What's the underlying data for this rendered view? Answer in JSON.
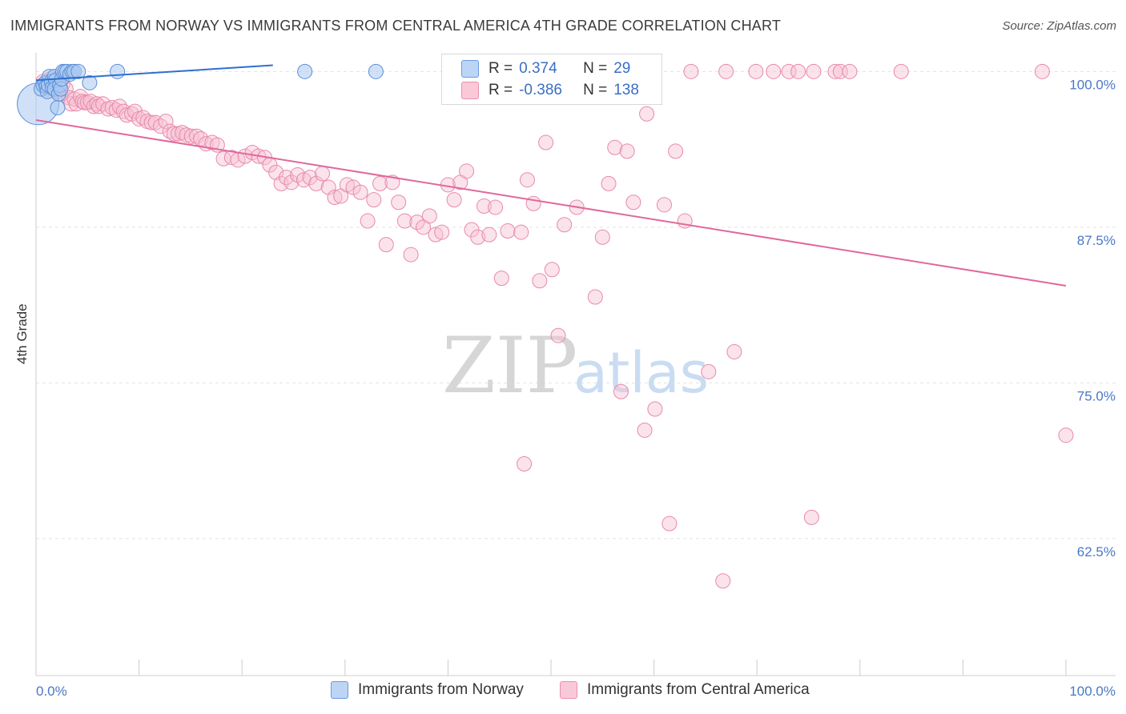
{
  "title": "IMMIGRANTS FROM NORWAY VS IMMIGRANTS FROM CENTRAL AMERICA 4TH GRADE CORRELATION CHART",
  "source": "Source: ZipAtlas.com",
  "legend": {
    "r_label": "R =",
    "n_label": "N =",
    "rows": [
      {
        "r": "0.374",
        "n": "29"
      },
      {
        "r": "-0.386",
        "n": "138"
      }
    ]
  },
  "watermark": {
    "zip": "ZIP",
    "atlas": "atlas"
  },
  "chart_data": {
    "type": "scatter",
    "ylabel": "4th Grade",
    "xlim": [
      0,
      100
    ],
    "ylim": [
      51.5,
      101.5
    ],
    "yticks": [
      {
        "value": 100,
        "label": "100.0%"
      },
      {
        "value": 87.5,
        "label": "87.5%"
      },
      {
        "value": 75,
        "label": "75.0%"
      },
      {
        "value": 62.5,
        "label": "62.5%"
      }
    ],
    "xtick_labels": {
      "min": "0.0%",
      "max": "100.0%"
    },
    "colors": {
      "norway_fill": "#a9c8f0",
      "norway_stroke": "#5b8fd9",
      "norway_line": "#2f6fcf",
      "central_fill": "#f7c0d2",
      "central_stroke": "#e889aa",
      "central_line": "#e0689a",
      "tick": "#4a78c6",
      "grid": "#e2e2e2",
      "axis": "#cccccc"
    },
    "series": [
      {
        "name": "Immigrants from Norway",
        "trend": {
          "x": [
            0,
            23
          ],
          "y": [
            99.3,
            100.5
          ]
        },
        "points": [
          [
            0.2,
            97.4,
            26
          ],
          [
            0.5,
            98.6,
            9
          ],
          [
            0.7,
            98.9,
            9
          ],
          [
            0.9,
            99.1,
            9
          ],
          [
            1.0,
            98.8,
            9
          ],
          [
            1.1,
            98.4,
            9
          ],
          [
            1.2,
            98.9,
            9
          ],
          [
            1.3,
            99.6,
            9
          ],
          [
            1.5,
            99.2,
            9
          ],
          [
            1.6,
            98.7,
            9
          ],
          [
            1.8,
            99.6,
            9
          ],
          [
            1.9,
            99.3,
            9
          ],
          [
            1.8,
            98.6,
            9
          ],
          [
            2.1,
            97.1,
            9
          ],
          [
            2.2,
            98.2,
            9
          ],
          [
            2.3,
            98.9,
            9
          ],
          [
            2.4,
            98.6,
            9
          ],
          [
            2.5,
            99.4,
            9
          ],
          [
            2.6,
            100.0,
            9
          ],
          [
            2.8,
            100.0,
            9
          ],
          [
            3.0,
            100.0,
            9
          ],
          [
            3.3,
            99.8,
            9
          ],
          [
            3.5,
            100.0,
            9
          ],
          [
            3.7,
            100.0,
            9
          ],
          [
            4.1,
            100.0,
            9
          ],
          [
            5.2,
            99.1,
            9
          ],
          [
            7.9,
            100.0,
            9
          ],
          [
            26.1,
            100.0,
            9
          ],
          [
            33.0,
            100.0,
            9
          ]
        ]
      },
      {
        "name": "Immigrants from Central America",
        "trend": {
          "x": [
            0,
            100
          ],
          "y": [
            96.1,
            82.8
          ]
        },
        "points": [
          [
            0.7,
            99.2,
            9
          ],
          [
            1.1,
            98.6,
            9
          ],
          [
            1.4,
            99.4,
            9
          ],
          [
            1.7,
            98.6,
            9
          ],
          [
            2.0,
            98.4,
            9
          ],
          [
            2.2,
            99.1,
            9
          ],
          [
            2.4,
            98.2,
            9
          ],
          [
            2.6,
            99.0,
            9
          ],
          [
            2.9,
            98.6,
            9
          ],
          [
            3.2,
            97.9,
            9
          ],
          [
            3.4,
            97.4,
            9
          ],
          [
            3.7,
            97.8,
            9
          ],
          [
            3.9,
            97.4,
            9
          ],
          [
            4.3,
            98.0,
            9
          ],
          [
            4.5,
            97.6,
            9
          ],
          [
            4.7,
            97.5,
            9
          ],
          [
            5.0,
            97.5,
            9
          ],
          [
            5.3,
            97.6,
            9
          ],
          [
            5.6,
            97.2,
            9
          ],
          [
            5.9,
            97.4,
            9
          ],
          [
            6.1,
            97.2,
            9
          ],
          [
            6.5,
            97.4,
            9
          ],
          [
            7.0,
            97.0,
            9
          ],
          [
            7.4,
            97.1,
            9
          ],
          [
            7.8,
            96.9,
            9
          ],
          [
            8.1,
            97.2,
            9
          ],
          [
            8.5,
            96.8,
            9
          ],
          [
            8.8,
            96.5,
            9
          ],
          [
            9.3,
            96.6,
            9
          ],
          [
            9.6,
            96.8,
            9
          ],
          [
            10.0,
            96.2,
            9
          ],
          [
            10.4,
            96.3,
            9
          ],
          [
            10.8,
            96.0,
            9
          ],
          [
            11.2,
            95.9,
            9
          ],
          [
            11.6,
            95.9,
            9
          ],
          [
            12.1,
            95.6,
            9
          ],
          [
            12.6,
            96.0,
            9
          ],
          [
            13.0,
            95.2,
            9
          ],
          [
            13.4,
            95.0,
            9
          ],
          [
            13.8,
            95.0,
            9
          ],
          [
            14.2,
            95.1,
            9
          ],
          [
            14.6,
            94.9,
            9
          ],
          [
            15.1,
            94.8,
            9
          ],
          [
            15.6,
            94.8,
            9
          ],
          [
            16.0,
            94.6,
            9
          ],
          [
            16.5,
            94.2,
            9
          ],
          [
            17.1,
            94.3,
            9
          ],
          [
            17.6,
            94.1,
            9
          ],
          [
            18.2,
            93.0,
            9
          ],
          [
            19.0,
            93.1,
            9
          ],
          [
            19.6,
            92.9,
            9
          ],
          [
            20.3,
            93.2,
            9
          ],
          [
            21.0,
            93.5,
            9
          ],
          [
            21.6,
            93.2,
            9
          ],
          [
            22.2,
            93.1,
            9
          ],
          [
            22.7,
            92.5,
            9
          ],
          [
            23.3,
            91.9,
            9
          ],
          [
            23.8,
            91.0,
            9
          ],
          [
            24.3,
            91.5,
            9
          ],
          [
            24.8,
            91.1,
            9
          ],
          [
            25.4,
            91.7,
            9
          ],
          [
            26.0,
            91.3,
            9
          ],
          [
            26.6,
            91.5,
            9
          ],
          [
            27.2,
            91.0,
            9
          ],
          [
            27.8,
            91.8,
            9
          ],
          [
            28.4,
            90.7,
            9
          ],
          [
            29.0,
            89.9,
            9
          ],
          [
            29.6,
            90.0,
            9
          ],
          [
            30.2,
            90.9,
            9
          ],
          [
            30.8,
            90.7,
            9
          ],
          [
            31.5,
            90.3,
            9
          ],
          [
            32.2,
            88.0,
            9
          ],
          [
            32.8,
            89.7,
            9
          ],
          [
            33.4,
            91.0,
            9
          ],
          [
            34.0,
            86.1,
            9
          ],
          [
            34.6,
            91.1,
            9
          ],
          [
            35.2,
            89.5,
            9
          ],
          [
            35.8,
            88.0,
            9
          ],
          [
            36.4,
            85.3,
            9
          ],
          [
            37.0,
            87.9,
            9
          ],
          [
            37.6,
            87.5,
            9
          ],
          [
            38.2,
            88.4,
            9
          ],
          [
            38.8,
            86.9,
            9
          ],
          [
            39.4,
            87.1,
            9
          ],
          [
            40.0,
            90.9,
            9
          ],
          [
            40.6,
            89.7,
            9
          ],
          [
            41.2,
            91.1,
            9
          ],
          [
            41.8,
            92.0,
            9
          ],
          [
            42.3,
            87.3,
            9
          ],
          [
            42.9,
            86.7,
            9
          ],
          [
            43.5,
            89.2,
            9
          ],
          [
            44.0,
            86.9,
            9
          ],
          [
            44.6,
            89.1,
            9
          ],
          [
            45.2,
            83.4,
            9
          ],
          [
            45.8,
            87.2,
            9
          ],
          [
            46.4,
            100.0,
            9
          ],
          [
            47.1,
            87.1,
            9
          ],
          [
            47.7,
            91.3,
            9
          ],
          [
            48.3,
            89.4,
            9
          ],
          [
            48.9,
            83.2,
            9
          ],
          [
            49.5,
            94.3,
            9
          ],
          [
            50.1,
            84.1,
            9
          ],
          [
            50.7,
            78.8,
            9
          ],
          [
            51.3,
            87.7,
            9
          ],
          [
            51.9,
            100.0,
            9
          ],
          [
            52.5,
            89.1,
            9
          ],
          [
            53.1,
            100.0,
            9
          ],
          [
            53.7,
            100.0,
            9
          ],
          [
            54.3,
            81.9,
            9
          ],
          [
            55.0,
            86.7,
            9
          ],
          [
            55.6,
            91.0,
            9
          ],
          [
            56.2,
            93.9,
            9
          ],
          [
            56.8,
            74.3,
            9
          ],
          [
            57.4,
            93.6,
            9
          ],
          [
            58.0,
            89.5,
            9
          ],
          [
            59.3,
            96.6,
            9
          ],
          [
            60.1,
            72.9,
            9
          ],
          [
            61.0,
            89.3,
            9
          ],
          [
            61.5,
            63.7,
            9
          ],
          [
            62.1,
            93.6,
            9
          ],
          [
            63.0,
            88.0,
            9
          ],
          [
            63.6,
            100.0,
            9
          ],
          [
            65.3,
            75.9,
            9
          ],
          [
            66.7,
            59.1,
            9
          ],
          [
            67.0,
            100.0,
            9
          ],
          [
            67.8,
            77.5,
            9
          ],
          [
            69.9,
            100.0,
            9
          ],
          [
            71.6,
            100.0,
            9
          ],
          [
            73.1,
            100.0,
            9
          ],
          [
            74.0,
            100.0,
            9
          ],
          [
            75.3,
            64.2,
            9
          ],
          [
            75.5,
            100.0,
            9
          ],
          [
            77.6,
            100.0,
            9
          ],
          [
            78.1,
            100.0,
            9
          ],
          [
            79.0,
            100.0,
            9
          ],
          [
            84.0,
            100.0,
            9
          ],
          [
            97.7,
            100.0,
            9
          ],
          [
            100.0,
            70.8,
            9
          ],
          [
            47.4,
            68.5,
            9
          ],
          [
            59.1,
            71.2,
            9
          ]
        ]
      }
    ]
  },
  "bottom_legend": [
    "Immigrants from Norway",
    "Immigrants from Central America"
  ]
}
